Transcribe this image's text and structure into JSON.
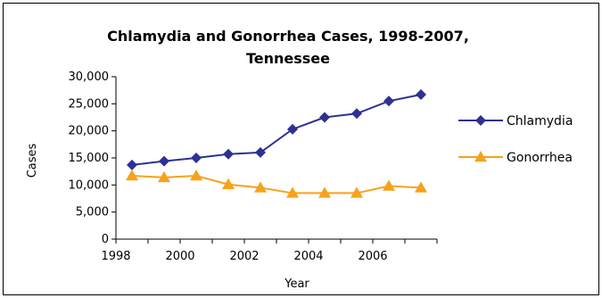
{
  "chart_data": {
    "type": "line",
    "title_line1": "Chlamydia and Gonorrhea Cases, 1998-2007,",
    "title_line2": "Tennessee",
    "xlabel": "Year",
    "ylabel": "Cases",
    "x": [
      1998,
      1999,
      2000,
      2001,
      2002,
      2003,
      2004,
      2005,
      2006,
      2007
    ],
    "x_tick_labels": [
      "1998",
      "2000",
      "2002",
      "2004",
      "2006"
    ],
    "y_tick_labels": [
      "0",
      "5,000",
      "10,000",
      "15,000",
      "20,000",
      "25,000",
      "30,000"
    ],
    "ylim": [
      0,
      30000
    ],
    "grid": false,
    "legend_position": "right",
    "series": [
      {
        "name": "Chlamydia",
        "color": "#2E3192",
        "marker": "diamond",
        "values": [
          13700,
          14400,
          15000,
          15700,
          16000,
          20300,
          22500,
          23200,
          25500,
          26700
        ]
      },
      {
        "name": "Gonorrhea",
        "color": "#F7A21B",
        "marker": "triangle",
        "values": [
          11700,
          11400,
          11700,
          10100,
          9500,
          8500,
          8500,
          8500,
          9800,
          9500
        ]
      }
    ]
  }
}
